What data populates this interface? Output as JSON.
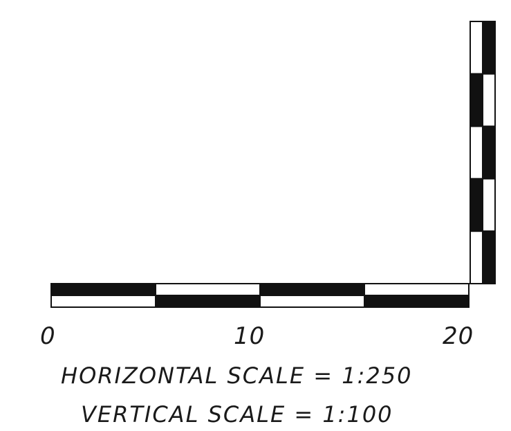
{
  "scale_bar": {
    "ticks": [
      "0",
      "10",
      "20"
    ],
    "horizontal_scale_text": "HORIZONTAL SCALE = 1:250",
    "vertical_scale_text": "VERTICAL SCALE = 1:100",
    "horizontal_segments": 4,
    "vertical_segments": 5,
    "colors": {
      "dark": "#111111",
      "light": "#ffffff",
      "outline": "#111111"
    }
  }
}
